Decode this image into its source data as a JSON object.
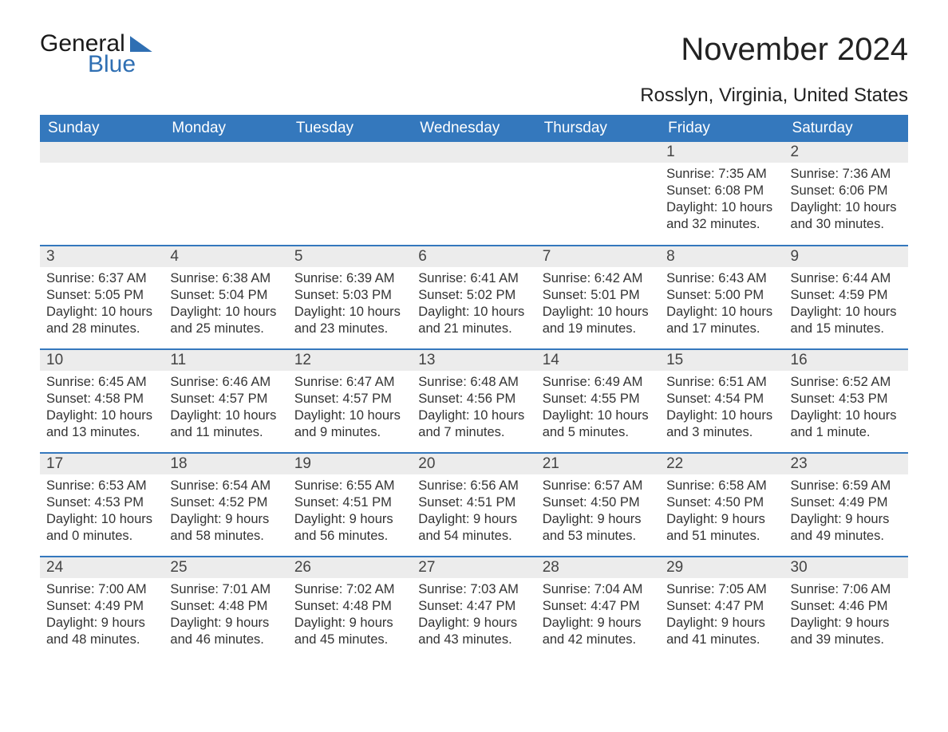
{
  "logo": {
    "word1": "General",
    "word2": "Blue"
  },
  "title": "November 2024",
  "location": "Rosslyn, Virginia, United States",
  "colors": {
    "header_bg": "#3478bd",
    "header_text": "#ffffff",
    "daynum_bg": "#ececec",
    "row_divider": "#3478bd",
    "text": "#333333",
    "logo_blue": "#2f6fb3"
  },
  "layout": {
    "type": "calendar",
    "columns": 7,
    "rows": 5,
    "first_day_column_index": 5
  },
  "weekday_headers": [
    "Sunday",
    "Monday",
    "Tuesday",
    "Wednesday",
    "Thursday",
    "Friday",
    "Saturday"
  ],
  "labels": {
    "sunrise": "Sunrise:",
    "sunset": "Sunset:",
    "daylight": "Daylight:"
  },
  "days": [
    {
      "n": 1,
      "sunrise": "7:35 AM",
      "sunset": "6:08 PM",
      "daylight": "10 hours and 32 minutes."
    },
    {
      "n": 2,
      "sunrise": "7:36 AM",
      "sunset": "6:06 PM",
      "daylight": "10 hours and 30 minutes."
    },
    {
      "n": 3,
      "sunrise": "6:37 AM",
      "sunset": "5:05 PM",
      "daylight": "10 hours and 28 minutes."
    },
    {
      "n": 4,
      "sunrise": "6:38 AM",
      "sunset": "5:04 PM",
      "daylight": "10 hours and 25 minutes."
    },
    {
      "n": 5,
      "sunrise": "6:39 AM",
      "sunset": "5:03 PM",
      "daylight": "10 hours and 23 minutes."
    },
    {
      "n": 6,
      "sunrise": "6:41 AM",
      "sunset": "5:02 PM",
      "daylight": "10 hours and 21 minutes."
    },
    {
      "n": 7,
      "sunrise": "6:42 AM",
      "sunset": "5:01 PM",
      "daylight": "10 hours and 19 minutes."
    },
    {
      "n": 8,
      "sunrise": "6:43 AM",
      "sunset": "5:00 PM",
      "daylight": "10 hours and 17 minutes."
    },
    {
      "n": 9,
      "sunrise": "6:44 AM",
      "sunset": "4:59 PM",
      "daylight": "10 hours and 15 minutes."
    },
    {
      "n": 10,
      "sunrise": "6:45 AM",
      "sunset": "4:58 PM",
      "daylight": "10 hours and 13 minutes."
    },
    {
      "n": 11,
      "sunrise": "6:46 AM",
      "sunset": "4:57 PM",
      "daylight": "10 hours and 11 minutes."
    },
    {
      "n": 12,
      "sunrise": "6:47 AM",
      "sunset": "4:57 PM",
      "daylight": "10 hours and 9 minutes."
    },
    {
      "n": 13,
      "sunrise": "6:48 AM",
      "sunset": "4:56 PM",
      "daylight": "10 hours and 7 minutes."
    },
    {
      "n": 14,
      "sunrise": "6:49 AM",
      "sunset": "4:55 PM",
      "daylight": "10 hours and 5 minutes."
    },
    {
      "n": 15,
      "sunrise": "6:51 AM",
      "sunset": "4:54 PM",
      "daylight": "10 hours and 3 minutes."
    },
    {
      "n": 16,
      "sunrise": "6:52 AM",
      "sunset": "4:53 PM",
      "daylight": "10 hours and 1 minute."
    },
    {
      "n": 17,
      "sunrise": "6:53 AM",
      "sunset": "4:53 PM",
      "daylight": "10 hours and 0 minutes."
    },
    {
      "n": 18,
      "sunrise": "6:54 AM",
      "sunset": "4:52 PM",
      "daylight": "9 hours and 58 minutes."
    },
    {
      "n": 19,
      "sunrise": "6:55 AM",
      "sunset": "4:51 PM",
      "daylight": "9 hours and 56 minutes."
    },
    {
      "n": 20,
      "sunrise": "6:56 AM",
      "sunset": "4:51 PM",
      "daylight": "9 hours and 54 minutes."
    },
    {
      "n": 21,
      "sunrise": "6:57 AM",
      "sunset": "4:50 PM",
      "daylight": "9 hours and 53 minutes."
    },
    {
      "n": 22,
      "sunrise": "6:58 AM",
      "sunset": "4:50 PM",
      "daylight": "9 hours and 51 minutes."
    },
    {
      "n": 23,
      "sunrise": "6:59 AM",
      "sunset": "4:49 PM",
      "daylight": "9 hours and 49 minutes."
    },
    {
      "n": 24,
      "sunrise": "7:00 AM",
      "sunset": "4:49 PM",
      "daylight": "9 hours and 48 minutes."
    },
    {
      "n": 25,
      "sunrise": "7:01 AM",
      "sunset": "4:48 PM",
      "daylight": "9 hours and 46 minutes."
    },
    {
      "n": 26,
      "sunrise": "7:02 AM",
      "sunset": "4:48 PM",
      "daylight": "9 hours and 45 minutes."
    },
    {
      "n": 27,
      "sunrise": "7:03 AM",
      "sunset": "4:47 PM",
      "daylight": "9 hours and 43 minutes."
    },
    {
      "n": 28,
      "sunrise": "7:04 AM",
      "sunset": "4:47 PM",
      "daylight": "9 hours and 42 minutes."
    },
    {
      "n": 29,
      "sunrise": "7:05 AM",
      "sunset": "4:47 PM",
      "daylight": "9 hours and 41 minutes."
    },
    {
      "n": 30,
      "sunrise": "7:06 AM",
      "sunset": "4:46 PM",
      "daylight": "9 hours and 39 minutes."
    }
  ]
}
